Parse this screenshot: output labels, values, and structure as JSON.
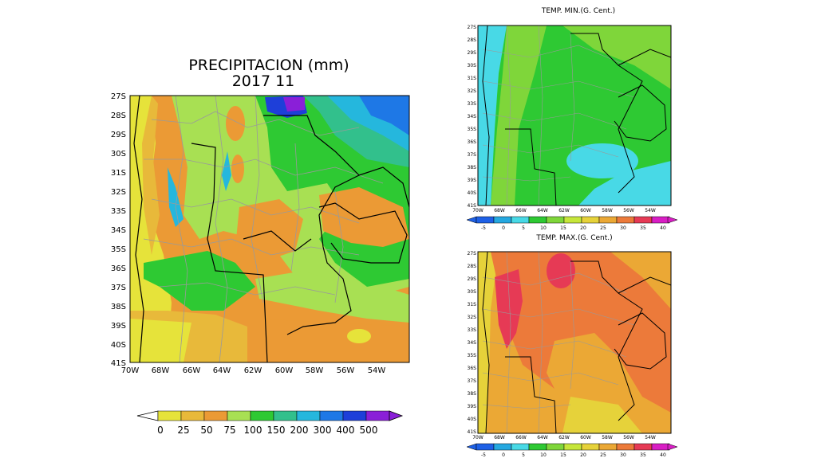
{
  "main": {
    "title_line1": "PRECIPITACION (mm)",
    "title_line2": "2017   11",
    "lat_labels": [
      "27S",
      "28S",
      "29S",
      "30S",
      "31S",
      "32S",
      "33S",
      "34S",
      "35S",
      "36S",
      "37S",
      "38S",
      "39S",
      "40S",
      "41S"
    ],
    "lon_labels": [
      "70W",
      "68W",
      "66W",
      "64W",
      "62W",
      "60W",
      "58W",
      "56W",
      "54W"
    ],
    "colorbar": {
      "ticks": [
        "0",
        "25",
        "50",
        "75",
        "100",
        "150",
        "200",
        "300",
        "400",
        "500"
      ],
      "colors": [
        "#e6e33a",
        "#e8b93a",
        "#eb9a35",
        "#a8e053",
        "#2ec933",
        "#32c08c",
        "#25b7dd",
        "#1e78e6",
        "#1e3fd9",
        "#8a1fd8"
      ]
    }
  },
  "tmin": {
    "title": "TEMP. MIN.(G. Cent.)",
    "lat_labels": [
      "27S",
      "28S",
      "29S",
      "30S",
      "31S",
      "32S",
      "33S",
      "34S",
      "35S",
      "36S",
      "37S",
      "38S",
      "39S",
      "40S",
      "41S"
    ],
    "lon_labels": [
      "70W",
      "68W",
      "66W",
      "64W",
      "62W",
      "60W",
      "58W",
      "56W",
      "54W"
    ],
    "colorbar": {
      "ticks": [
        "-5",
        "0",
        "5",
        "10",
        "15",
        "20",
        "25",
        "30",
        "35",
        "40"
      ],
      "colors": [
        "#1e60e6",
        "#25a8e0",
        "#48d9e6",
        "#2ec933",
        "#7fd63a",
        "#c6e63a",
        "#e6d23a",
        "#eba835",
        "#ec7a3a",
        "#e63a55",
        "#d81ec4"
      ]
    }
  },
  "tmax": {
    "title": "TEMP. MAX.(G. Cent.)",
    "lat_labels": [
      "27S",
      "28S",
      "29S",
      "30S",
      "31S",
      "32S",
      "33S",
      "34S",
      "35S",
      "36S",
      "37S",
      "38S",
      "39S",
      "40S",
      "41S"
    ],
    "lon_labels": [
      "70W",
      "68W",
      "66W",
      "64W",
      "62W",
      "60W",
      "58W",
      "56W",
      "54W"
    ],
    "colorbar": {
      "ticks": [
        "-5",
        "0",
        "5",
        "10",
        "15",
        "20",
        "25",
        "30",
        "35",
        "40"
      ],
      "colors": [
        "#1e60e6",
        "#25a8e0",
        "#48d9e6",
        "#2ec933",
        "#7fd63a",
        "#c6e63a",
        "#e6d23a",
        "#eba835",
        "#ec7a3a",
        "#e63a55",
        "#d81ec4"
      ]
    }
  }
}
